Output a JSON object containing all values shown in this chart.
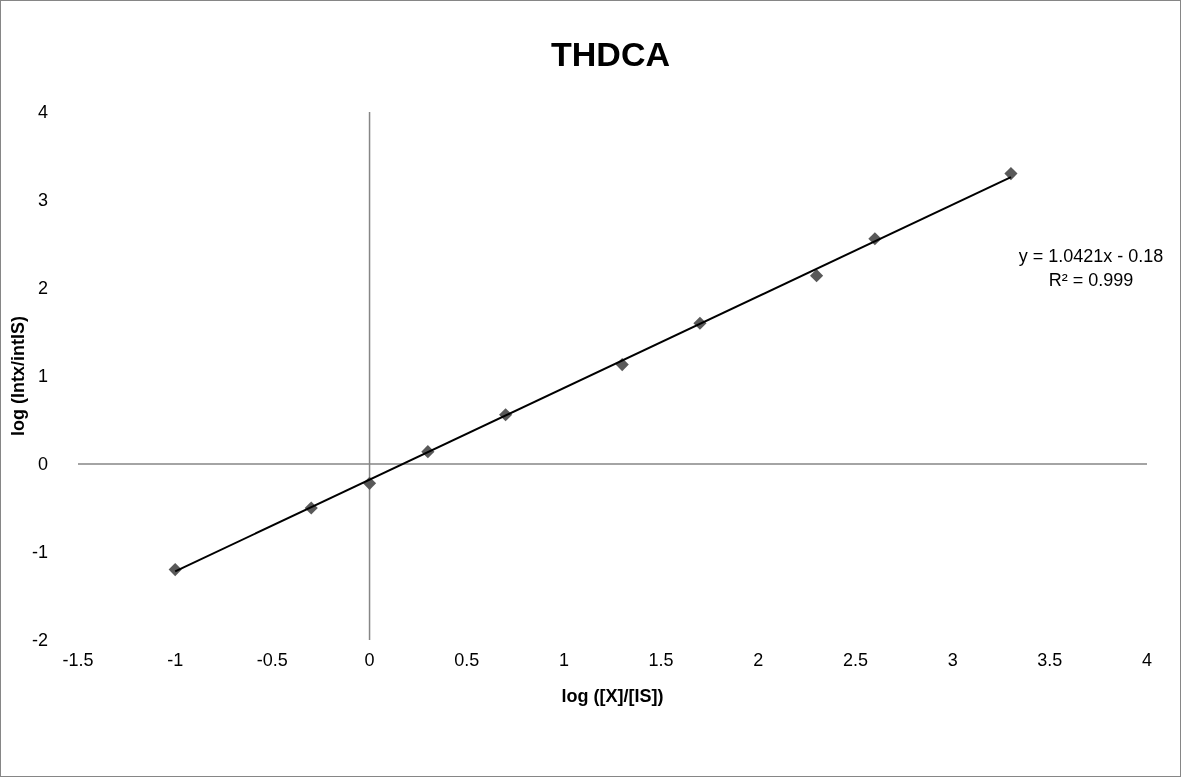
{
  "chart_data": {
    "type": "scatter",
    "title": "THDCA",
    "xlabel": "log ([X]/[IS])",
    "ylabel": "log (Intx/intIS)",
    "xlim": [
      -1.5,
      4
    ],
    "xticks": [
      -1.5,
      -1,
      -0.5,
      0,
      0.5,
      1,
      1.5,
      2,
      2.5,
      3,
      3.5,
      4
    ],
    "ylim": [
      -2,
      4
    ],
    "yticks": [
      -2,
      -1,
      0,
      1,
      2,
      3,
      4
    ],
    "series": [
      {
        "color": "#595959",
        "marker": "diamond",
        "x": [
          -1,
          -0.3,
          0,
          0.3,
          0.7,
          1.3,
          1.7,
          2.3,
          2.6,
          3.3
        ],
        "values": [
          -1.2,
          -0.5,
          -0.22,
          0.14,
          0.56,
          1.13,
          1.6,
          2.14,
          2.56,
          3.3
        ]
      },
      {
        "type": "line",
        "color": "#000000",
        "marker": "none",
        "x": [
          -1,
          3.3
        ],
        "values": [
          -1.22,
          3.26
        ]
      }
    ],
    "annotations": [
      "y = 1.0421x - 0.18\nR² = 0.999"
    ]
  }
}
